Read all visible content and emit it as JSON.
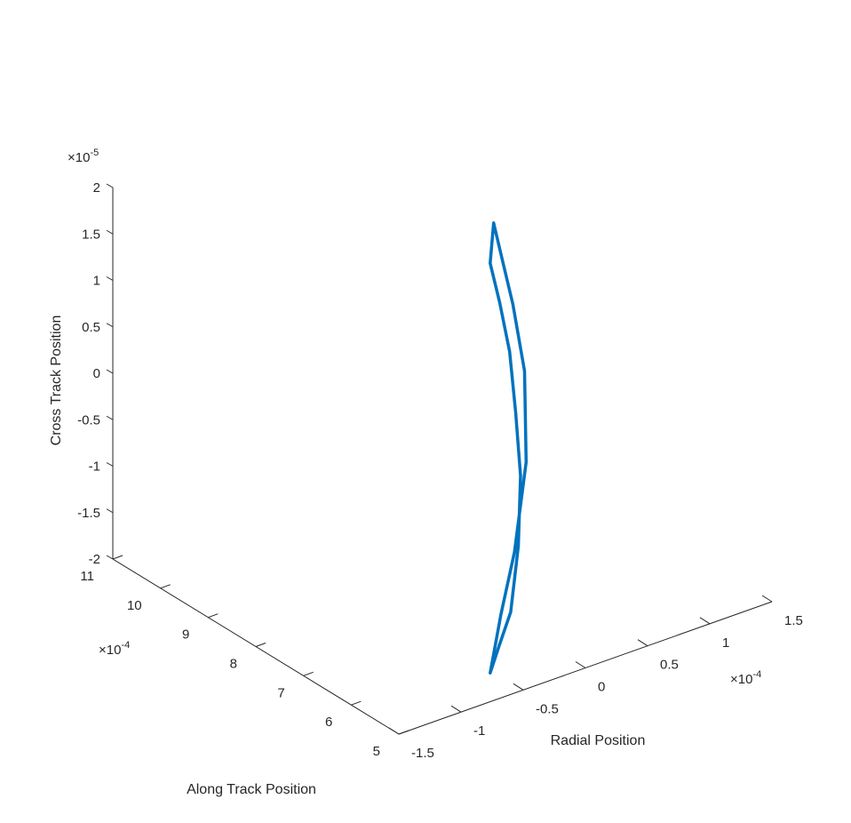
{
  "chart_data": {
    "type": "line",
    "xlabel": "Radial Position",
    "ylabel": "Along Track Position",
    "zlabel": "Cross Track Position",
    "x_multiplier": {
      "base": "×10",
      "exp": "-4"
    },
    "y_multiplier": {
      "base": "×10",
      "exp": "-4"
    },
    "z_multiplier": {
      "base": "×10",
      "exp": "-5"
    },
    "xlim": [
      -1.5,
      1.5
    ],
    "ylim": [
      5,
      11
    ],
    "zlim": [
      -2,
      2
    ],
    "xticks": [
      "-1.5",
      "-1",
      "-0.5",
      "0",
      "0.5",
      "1",
      "1.5"
    ],
    "yticks": [
      "5",
      "6",
      "7",
      "8",
      "9",
      "10",
      "11"
    ],
    "zticks": [
      "-2",
      "-1.5",
      "-1",
      "-0.5",
      "0",
      "0.5",
      "1",
      "1.5",
      "2"
    ],
    "grid": false,
    "series": [
      {
        "color": "#0072BD",
        "curve": [
          {
            "x": 1.24,
            "y": 10.16,
            "z": 0.58
          },
          {
            "x": 1.22,
            "y": 10.18,
            "z": 0.15
          },
          {
            "x": 1.12,
            "y": 9.72,
            "z": -0.08
          },
          {
            "x": 0.97,
            "y": 9.12,
            "z": -0.35
          },
          {
            "x": 0.75,
            "y": 8.42,
            "z": -0.68
          },
          {
            "x": 0.51,
            "y": 7.69,
            "z": -1.02
          },
          {
            "x": 0.17,
            "y": 6.85,
            "z": -1.35
          },
          {
            "x": -0.21,
            "y": 6.02,
            "z": -1.62
          },
          {
            "x": -0.52,
            "y": 5.45,
            "z": -1.65
          },
          {
            "x": -0.72,
            "y": 5.12,
            "z": -1.75
          },
          {
            "x": -0.48,
            "y": 5.52,
            "z": -1.36
          },
          {
            "x": -0.08,
            "y": 6.28,
            "z": -1.12
          },
          {
            "x": 0.39,
            "y": 7.26,
            "z": -0.68
          },
          {
            "x": 0.73,
            "y": 8.18,
            "z": -0.15
          },
          {
            "x": 0.97,
            "y": 9.05,
            "z": 0.18
          },
          {
            "x": 1.1,
            "y": 9.6,
            "z": 0.4
          },
          {
            "x": 1.24,
            "y": 10.16,
            "z": 0.58
          }
        ]
      }
    ]
  }
}
